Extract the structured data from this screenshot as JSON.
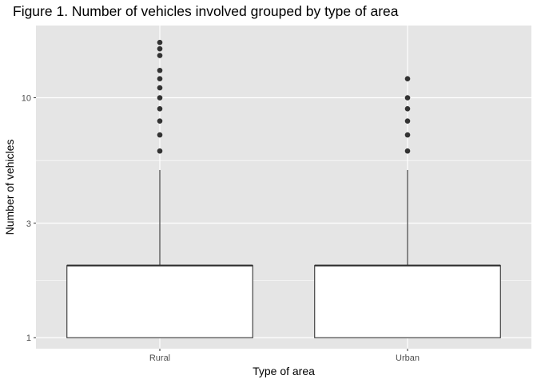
{
  "chart_data": {
    "type": "boxplot",
    "title": "Figure 1. Number of vehicles involved grouped by type of area",
    "xlabel": "Type of area",
    "ylabel": "Number of vehicles",
    "y_scale": "log10",
    "ylim": [
      0.9,
      20
    ],
    "y_ticks": [
      {
        "value": 1,
        "label": "1"
      },
      {
        "value": 3,
        "label": "3"
      },
      {
        "value": 10,
        "label": "10"
      }
    ],
    "y_minor_ticks": [
      1.732,
      5.477
    ],
    "categories": [
      "Rural",
      "Urban"
    ],
    "boxes": [
      {
        "name": "Rural",
        "q1": 1,
        "median": 2,
        "q3": 2,
        "whisker_low": 1,
        "whisker_high": 5,
        "outliers": [
          6,
          7,
          8,
          9,
          10,
          11,
          12,
          13,
          15,
          16,
          17
        ]
      },
      {
        "name": "Urban",
        "q1": 1,
        "median": 2,
        "q3": 2,
        "whisker_low": 1,
        "whisker_high": 5,
        "outliers": [
          6,
          7,
          8,
          9,
          10,
          12
        ]
      }
    ],
    "grid": true,
    "legend": "none",
    "colors": {
      "panel_bg": "#e5e5e5",
      "grid": "#ffffff",
      "box_fill": "#ffffff",
      "box_stroke": "#333333",
      "outlier": "#333333"
    }
  }
}
